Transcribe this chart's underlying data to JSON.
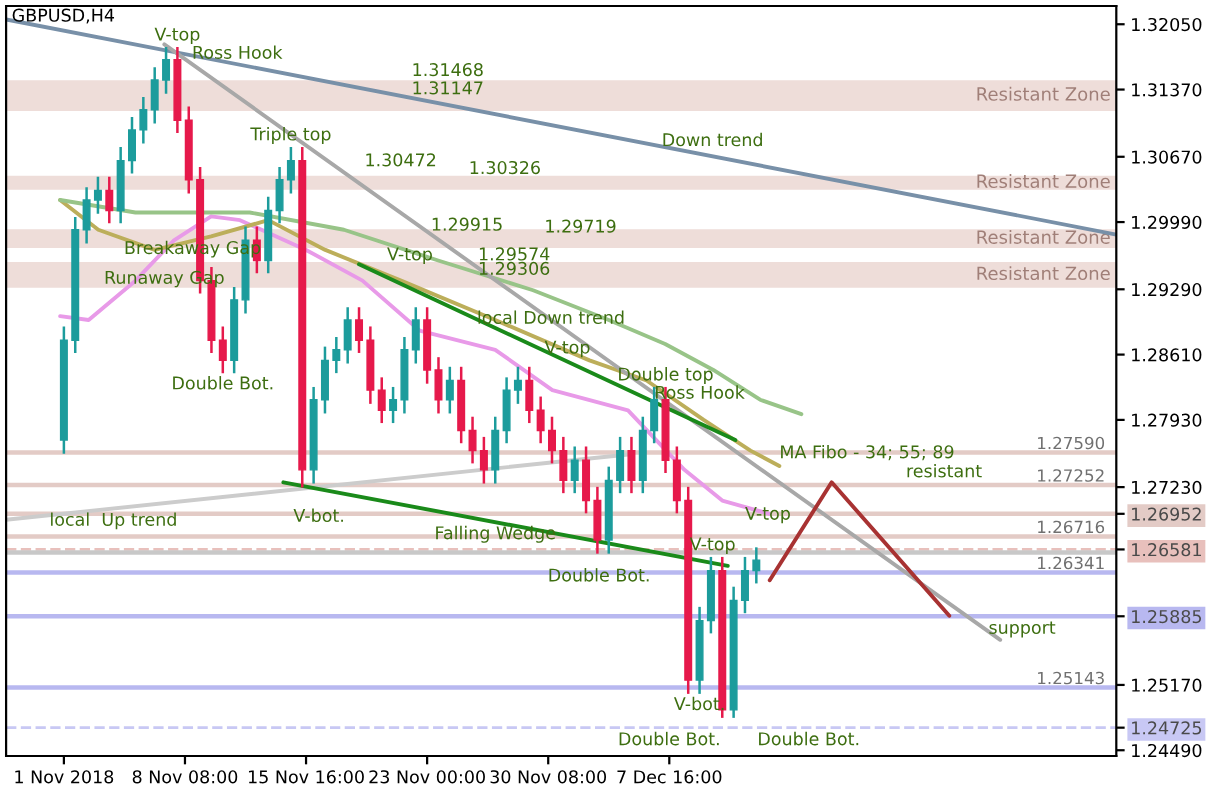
{
  "chart_data": {
    "type": "candlestick",
    "title": "GBPUSD,H4",
    "x": [
      "2018-11-01T00:00",
      "2018-11-01T16:30",
      "2018-11-02T09:00",
      "2018-11-03T01:30",
      "2018-11-03T18:00",
      "2018-11-04T10:30",
      "2018-11-05T03:00",
      "2018-11-05T19:30",
      "2018-11-06T12:00",
      "2018-11-07T04:30",
      "2018-11-07T21:00",
      "2018-11-08T13:30",
      "2018-11-09T06:00",
      "2018-11-09T22:30",
      "2018-11-10T15:00",
      "2018-11-11T07:30",
      "2018-11-12T00:00",
      "2018-11-12T16:30",
      "2018-11-13T09:00",
      "2018-11-14T01:30",
      "2018-11-14T18:00",
      "2018-11-15T10:30",
      "2018-11-16T03:00",
      "2018-11-16T19:30",
      "2018-11-17T12:00",
      "2018-11-18T04:30",
      "2018-11-18T21:00",
      "2018-11-19T13:30",
      "2018-11-20T06:00",
      "2018-11-20T22:30",
      "2018-11-21T15:00",
      "2018-11-22T07:30",
      "2018-11-23T00:00",
      "2018-11-23T16:30",
      "2018-11-24T09:00",
      "2018-11-25T01:30",
      "2018-11-25T18:00",
      "2018-11-26T10:30",
      "2018-11-27T03:00",
      "2018-11-27T19:30",
      "2018-11-28T12:00",
      "2018-11-29T04:30",
      "2018-11-29T21:00",
      "2018-11-30T13:30",
      "2018-12-01T06:00",
      "2018-12-01T22:30",
      "2018-12-02T15:00",
      "2018-12-03T07:30",
      "2018-12-04T00:00",
      "2018-12-04T16:30",
      "2018-12-05T09:00",
      "2018-12-06T01:30",
      "2018-12-06T18:00",
      "2018-12-07T10:30",
      "2018-12-08T03:00",
      "2018-12-08T19:30",
      "2018-12-09T12:00",
      "2018-12-10T04:30",
      "2018-12-10T21:00",
      "2018-12-11T13:30",
      "2018-12-12T06:00",
      "2018-12-12T22:30"
    ],
    "ohlc": [
      [
        1.2772,
        1.2889,
        1.2759,
        1.2876
      ],
      [
        1.2876,
        1.3003,
        1.2864,
        1.2991
      ],
      [
        1.2991,
        1.3034,
        1.2978,
        1.3022
      ],
      [
        1.3022,
        1.3045,
        1.3009,
        1.3032
      ],
      [
        1.3032,
        1.3045,
        1.2999,
        1.3011
      ],
      [
        1.3011,
        1.3076,
        1.2999,
        1.3063
      ],
      [
        1.3063,
        1.3107,
        1.3051,
        1.3095
      ],
      [
        1.3095,
        1.3128,
        1.3082,
        1.3116
      ],
      [
        1.3116,
        1.3159,
        1.3103,
        1.3147
      ],
      [
        1.3147,
        1.318,
        1.3134,
        1.3168
      ],
      [
        1.3168,
        1.318,
        1.3093,
        1.3105
      ],
      [
        1.3105,
        1.3118,
        1.303,
        1.3043
      ],
      [
        1.3043,
        1.3055,
        1.2926,
        1.2938
      ],
      [
        1.2938,
        1.2951,
        1.2864,
        1.2876
      ],
      [
        1.2876,
        1.2889,
        1.2843,
        1.2855
      ],
      [
        1.2855,
        1.293,
        1.2843,
        1.2918
      ],
      [
        1.2918,
        1.2993,
        1.2905,
        1.298
      ],
      [
        1.298,
        1.2993,
        1.2947,
        1.2959
      ],
      [
        1.2959,
        1.3024,
        1.2947,
        1.3011
      ],
      [
        1.3011,
        1.3055,
        1.2999,
        1.3043
      ],
      [
        1.3043,
        1.3076,
        1.303,
        1.3063
      ],
      [
        1.3063,
        1.3076,
        1.2724,
        1.2741
      ],
      [
        1.2741,
        1.2826,
        1.2728,
        1.2814
      ],
      [
        1.2814,
        1.2868,
        1.2801,
        1.2855
      ],
      [
        1.2855,
        1.2878,
        1.2843,
        1.2866
      ],
      [
        1.2866,
        1.2909,
        1.2853,
        1.2897
      ],
      [
        1.2897,
        1.2909,
        1.2864,
        1.2876
      ],
      [
        1.2876,
        1.2889,
        1.2811,
        1.2824
      ],
      [
        1.2824,
        1.2836,
        1.2791,
        1.2803
      ],
      [
        1.2803,
        1.2826,
        1.2791,
        1.2814
      ],
      [
        1.2814,
        1.2878,
        1.2801,
        1.2866
      ],
      [
        1.2866,
        1.2909,
        1.2853,
        1.2897
      ],
      [
        1.2897,
        1.2909,
        1.2832,
        1.2845
      ],
      [
        1.2845,
        1.2857,
        1.2801,
        1.2814
      ],
      [
        1.2814,
        1.2847,
        1.2801,
        1.2834
      ],
      [
        1.2834,
        1.2847,
        1.277,
        1.2782
      ],
      [
        1.2782,
        1.2795,
        1.2749,
        1.2761
      ],
      [
        1.2761,
        1.2774,
        1.2728,
        1.2741
      ],
      [
        1.2741,
        1.2795,
        1.2728,
        1.2782
      ],
      [
        1.2782,
        1.2836,
        1.277,
        1.2824
      ],
      [
        1.2824,
        1.2847,
        1.2811,
        1.2834
      ],
      [
        1.2834,
        1.2847,
        1.2791,
        1.2803
      ],
      [
        1.2803,
        1.2816,
        1.277,
        1.2782
      ],
      [
        1.2782,
        1.2795,
        1.2749,
        1.2761
      ],
      [
        1.2761,
        1.2774,
        1.2718,
        1.273
      ],
      [
        1.273,
        1.2764,
        1.2718,
        1.2751
      ],
      [
        1.2751,
        1.2764,
        1.2697,
        1.2709
      ],
      [
        1.2709,
        1.2722,
        1.2655,
        1.2668
      ],
      [
        1.2668,
        1.2743,
        1.2655,
        1.273
      ],
      [
        1.273,
        1.2774,
        1.2718,
        1.2761
      ],
      [
        1.2761,
        1.2774,
        1.2718,
        1.273
      ],
      [
        1.273,
        1.2795,
        1.2718,
        1.2782
      ],
      [
        1.2782,
        1.2826,
        1.277,
        1.2814
      ],
      [
        1.2814,
        1.2826,
        1.2739,
        1.2751
      ],
      [
        1.2751,
        1.2764,
        1.2697,
        1.2709
      ],
      [
        1.2709,
        1.2722,
        1.2509,
        1.2522
      ],
      [
        1.2522,
        1.2597,
        1.2509,
        1.2584
      ],
      [
        1.2584,
        1.2649,
        1.2572,
        1.2636
      ],
      [
        1.2636,
        1.2649,
        1.2484,
        1.2491
      ],
      [
        1.2491,
        1.2618,
        1.2484,
        1.2605
      ],
      [
        1.2605,
        1.2649,
        1.2593,
        1.2636
      ],
      [
        1.2636,
        1.2659,
        1.2624,
        1.2647
      ]
    ],
    "colors": [
      "#1c9c9c",
      "#1c9c9c",
      "#1c9c9c",
      "#1c9c9c",
      "#e6194b",
      "#1c9c9c",
      "#1c9c9c",
      "#1c9c9c",
      "#1c9c9c",
      "#1c9c9c",
      "#e6194b",
      "#e6194b",
      "#e6194b",
      "#e6194b",
      "#e6194b",
      "#1c9c9c",
      "#1c9c9c",
      "#e6194b",
      "#1c9c9c",
      "#1c9c9c",
      "#1c9c9c",
      "#e6194b",
      "#1c9c9c",
      "#1c9c9c",
      "#1c9c9c",
      "#1c9c9c",
      "#e6194b",
      "#e6194b",
      "#e6194b",
      "#1c9c9c",
      "#1c9c9c",
      "#1c9c9c",
      "#e6194b",
      "#e6194b",
      "#1c9c9c",
      "#e6194b",
      "#e6194b",
      "#e6194b",
      "#1c9c9c",
      "#1c9c9c",
      "#1c9c9c",
      "#e6194b",
      "#e6194b",
      "#e6194b",
      "#e6194b",
      "#1c9c9c",
      "#e6194b",
      "#e6194b",
      "#1c9c9c",
      "#1c9c9c",
      "#e6194b",
      "#1c9c9c",
      "#1c9c9c",
      "#e6194b",
      "#e6194b",
      "#e6194b",
      "#1c9c9c",
      "#1c9c9c",
      "#e6194b",
      "#1c9c9c",
      "#1c9c9c",
      "#1c9c9c"
    ],
    "series": [
      {
        "type": "line",
        "color": "#e89ae8",
        "x": [
          "2018-10-31T18:30",
          "2018-11-02T12:00",
          "2018-11-05T08:00",
          "2018-11-07T16:00",
          "2018-11-09T22:00",
          "2018-11-11T16:00",
          "2018-11-15T16:00",
          "2018-11-19T02:00",
          "2018-11-22T13:00",
          "2018-11-27T03:00",
          "2018-11-30T14:00",
          "2018-12-05T04:00",
          "2018-12-08T14:00",
          "2018-12-10T21:00",
          "2018-12-13T18:00"
        ],
        "values": [
          1.2901,
          1.2897,
          1.2938,
          1.298,
          1.3005,
          1.3001,
          1.297,
          1.2938,
          1.2886,
          1.2866,
          1.2824,
          1.2803,
          1.2741,
          1.2709,
          1.2695
        ]
      },
      {
        "type": "line",
        "color": "#bcae5a",
        "x": [
          "2018-10-31T18:30",
          "2018-11-03T02:00",
          "2018-11-06T12:00",
          "2018-11-09T22:00",
          "2018-11-13T09:00",
          "2018-11-16T20:00",
          "2018-11-21T10:00",
          "2018-11-27T03:00",
          "2018-12-02T20:00",
          "2018-12-06T07:00",
          "2018-12-09T18:00",
          "2018-12-12T14:00",
          "2018-12-14T08:00"
        ],
        "values": [
          1.3022,
          1.2991,
          1.297,
          1.2984,
          1.3001,
          1.297,
          1.2938,
          1.2897,
          1.2855,
          1.2834,
          1.2793,
          1.2761,
          1.2745
        ]
      },
      {
        "type": "line",
        "color": "#98c488",
        "x": [
          "2018-10-31T18:30",
          "2018-11-05T08:00",
          "2018-11-12T06:00",
          "2018-11-17T23:00",
          "2018-11-23T16:00",
          "2018-11-29T10:00",
          "2018-12-04T00:00",
          "2018-12-07T10:00",
          "2018-12-10T08:00",
          "2018-12-13T04:00",
          "2018-12-15T16:00"
        ],
        "values": [
          1.3022,
          1.3009,
          1.3009,
          1.2991,
          1.2959,
          1.2928,
          1.2897,
          1.2872,
          1.2845,
          1.2814,
          1.2799
        ]
      },
      {
        "type": "line",
        "color": "#7890a8",
        "x": [
          "2018-10-28T12:00",
          "2019-01-03T17:45"
        ],
        "values": [
          1.321,
          1.2986
        ]
      },
      {
        "type": "line",
        "color": "#a8a8a8",
        "x": [
          "2018-11-07T02:00",
          "2018-12-27T17:00"
        ],
        "values": [
          1.3184,
          1.2564
        ]
      },
      {
        "type": "line",
        "color": "#cccccc",
        "x": [
          "2018-10-28T12:00",
          "2018-12-05T04:00"
        ],
        "values": [
          1.2689,
          1.2757
        ]
      },
      {
        "type": "line",
        "color": "#1a8a1a",
        "x": [
          "2018-11-18T21:00",
          "2018-12-11T16:00"
        ],
        "values": [
          1.2955,
          1.2772
        ]
      },
      {
        "type": "line",
        "color": "#1a8a1a",
        "x": [
          "2018-11-14T07:00",
          "2018-12-11T05:00"
        ],
        "values": [
          1.2728,
          1.2641
        ]
      },
      {
        "type": "line",
        "color": "#a83232",
        "x": [
          "2018-12-13T18:00",
          "2018-12-17T12:00",
          "2018-12-24T15:00"
        ],
        "values": [
          1.2626,
          1.2728,
          1.2589
        ]
      }
    ],
    "bands": [
      {
        "axis": "y",
        "from": 1.31147,
        "to": 1.31468,
        "label": "Resistant Zone",
        "color": "#eeddd9"
      },
      {
        "axis": "y",
        "from": 1.30326,
        "to": 1.30472,
        "label": "Resistant Zone",
        "color": "#eeddd9"
      },
      {
        "axis": "y",
        "from": 1.29719,
        "to": 1.29915,
        "label": "Resistant Zone",
        "color": "#eeddd9"
      },
      {
        "axis": "y",
        "from": 1.29306,
        "to": 1.29574,
        "label": "Resistant Zone",
        "color": "#eeddd9"
      }
    ],
    "ref_lines": [
      {
        "axis": "y",
        "value": 1.2759,
        "label": "1.27590",
        "color": "#e3cbc6"
      },
      {
        "axis": "y",
        "value": 1.27252,
        "label": "1.27252",
        "color": "#e3cbc6"
      },
      {
        "axis": "y",
        "value": 1.26952,
        "color": "#e3cbc6"
      },
      {
        "axis": "y",
        "value": 1.26716,
        "label": "1.26716",
        "color": "#e3cbc6"
      },
      {
        "axis": "y",
        "value": 1.26581,
        "color": "#e8c0bc",
        "line_style": "dashed"
      },
      {
        "axis": "y",
        "value": 1.2655,
        "color": "#c8c8c8"
      },
      {
        "axis": "y",
        "value": 1.26341,
        "label": "1.26341",
        "color": "#b8b8f0"
      },
      {
        "axis": "y",
        "value": 1.25885,
        "color": "#b8b8f0"
      },
      {
        "axis": "y",
        "value": 1.25143,
        "label": "1.25143",
        "color": "#b8b8f0"
      },
      {
        "axis": "y",
        "value": 1.24725,
        "color": "#c8c8f4",
        "line_style": "dashed"
      }
    ],
    "annotations": [
      {
        "text": "V-top",
        "x": "2018-11-07T21:00",
        "y": 1.318
      },
      {
        "text": "Ross Hook",
        "x": "2018-11-11T12:00",
        "y": 1.3161
      },
      {
        "text": "Triple top",
        "x": "2018-11-14T18:00",
        "y": 1.3076
      },
      {
        "text": "Breakaway Gap",
        "x": "2018-11-08T19:00",
        "y": 1.2984
      },
      {
        "text": "Runaway Gap",
        "x": "2018-11-07T02:00",
        "y": 1.2953
      },
      {
        "text": "Double Bot.",
        "x": "2018-11-10T15:00",
        "y": 1.2843
      },
      {
        "text": "Down trend",
        "x": "2018-12-10T07:00",
        "y": 1.307
      },
      {
        "text": "local Down trend",
        "x": "2018-11-30T12:00",
        "y": 1.2885
      },
      {
        "text": "V-top",
        "x": "2018-11-21T23:00",
        "y": 1.2951
      },
      {
        "text": "V-top",
        "x": "2018-12-01T12:00",
        "y": 1.2854
      },
      {
        "text": "Double top",
        "x": "2018-12-07T10:30",
        "y": 1.2826
      },
      {
        "text": "Ross Hook",
        "x": "2018-12-09T12:00",
        "y": 1.2807
      },
      {
        "text": "MA Fibo - 34; 55; 89",
        "x": "2018-12-14T08:00",
        "y": 1.2745
      },
      {
        "text": "Falling Wedge",
        "x": "2018-11-27T03:00",
        "y": 1.2687
      },
      {
        "text": "V-bot.",
        "x": "2018-11-16T11:00",
        "y": 1.2705
      },
      {
        "text": "local  Up trend",
        "x": "2018-11-04T00:00",
        "y": 1.2701
      },
      {
        "text": "Double Bot.",
        "x": "2018-12-03T10:00",
        "y": 1.2643
      },
      {
        "text": "V-top",
        "x": "2018-12-10T07:00",
        "y": 1.2649
      },
      {
        "text": "V-top",
        "x": "2018-12-12T06:00",
        "y": 1.2681
      },
      {
        "text": "V-bot.",
        "x": "2018-12-09T12:00",
        "y": 1.2509
      },
      {
        "text": "Double Bot.",
        "x": "2018-12-13T00:00",
        "y": 1.24725
      },
      {
        "text": "Double Bot.",
        "x": "2018-12-07T16:00",
        "y": 1.24725
      },
      {
        "text": "resistant",
        "x": "2018-12-22T00:00",
        "y": 1.27252
      },
      {
        "text": "support",
        "x": "2018-12-27T00:00",
        "y": 1.25885
      },
      {
        "text": "1.31468",
        "x": "2018-11-24T06:00",
        "y": 1.3143
      },
      {
        "text": "1.31147",
        "x": "2018-11-24T06:00",
        "y": 1.3124
      },
      {
        "text": "1.30472",
        "x": "2018-11-21T09:30",
        "y": 1.3049
      },
      {
        "text": "1.30326",
        "x": "2018-11-27T17:00",
        "y": 1.3041
      },
      {
        "text": "1.29915",
        "x": "2018-11-25T10:00",
        "y": 1.2982
      },
      {
        "text": "1.29719",
        "x": "2018-12-02T07:00",
        "y": 1.298
      },
      {
        "text": "1.29574",
        "x": "2018-11-28T06:30",
        "y": 1.2951
      },
      {
        "text": "1.29306",
        "x": "2018-11-28T06:30",
        "y": 1.2936
      }
    ],
    "xlim": [
      "2018-10-28T12:00",
      "2019-01-03T17:45"
    ],
    "xticks": [
      {
        "value": "2018-11-01T00:00",
        "label": "1 Nov 2018"
      },
      {
        "value": "2018-11-08T08:00",
        "label": "8 Nov 08:00"
      },
      {
        "value": "2018-11-15T16:00",
        "label": "15 Nov 16:00"
      },
      {
        "value": "2018-11-23T00:00",
        "label": "23 Nov 00:00"
      },
      {
        "value": "2018-11-30T08:00",
        "label": "30 Nov 08:00"
      },
      {
        "value": "2018-12-07T16:00",
        "label": "7 Dec 16:00"
      }
    ],
    "ylim": [
      1.2443,
      1.3224
    ],
    "yticks": [
      {
        "value": 1.3205,
        "label": "1.32050"
      },
      {
        "value": 1.3137,
        "label": "1.31370"
      },
      {
        "value": 1.3067,
        "label": "1.30670"
      },
      {
        "value": 1.2999,
        "label": "1.29990"
      },
      {
        "value": 1.2929,
        "label": "1.29290"
      },
      {
        "value": 1.2861,
        "label": "1.28610"
      },
      {
        "value": 1.2793,
        "label": "1.27930"
      },
      {
        "value": 1.2723,
        "label": "1.27230"
      },
      {
        "value": 1.26952,
        "label": "1.26952"
      },
      {
        "value": 1.26581,
        "label": "1.26581"
      },
      {
        "value": 1.25885,
        "label": "1.25885"
      },
      {
        "value": 1.2517,
        "label": "1.25170"
      },
      {
        "value": 1.24725,
        "label": "1.24725"
      },
      {
        "value": 1.2449,
        "label": "1.24490"
      }
    ]
  }
}
